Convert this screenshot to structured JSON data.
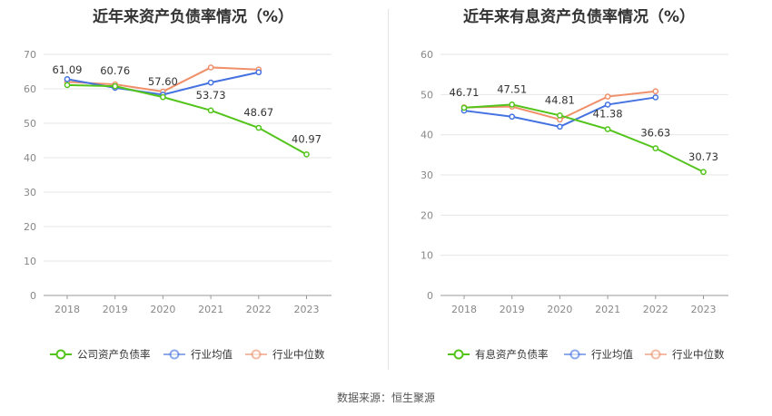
{
  "chart_data": [
    {
      "type": "line",
      "title": "近年来资产负债率情况（%）",
      "categories": [
        "2018",
        "2019",
        "2020",
        "2021",
        "2022",
        "2023"
      ],
      "ylim": [
        0,
        70
      ],
      "yticks": [
        0,
        10,
        20,
        30,
        40,
        50,
        60,
        70
      ],
      "grid": true,
      "legend_position": "bottom",
      "series": [
        {
          "name": "公司资产负债率",
          "color": "#52c41a",
          "values": [
            61.09,
            60.76,
            57.6,
            53.73,
            48.67,
            40.97
          ],
          "labels": [
            "61.09",
            "60.76",
            "57.60",
            "53.73",
            "48.67",
            "40.97"
          ]
        },
        {
          "name": "行业均值",
          "color": "#4472e0",
          "values": [
            62.8,
            60.3,
            58.3,
            61.8,
            64.8,
            null
          ]
        },
        {
          "name": "行业中位数",
          "color": "#f0906a",
          "values": [
            62.0,
            61.3,
            59.2,
            66.2,
            65.6,
            null
          ]
        }
      ]
    },
    {
      "type": "line",
      "title": "近年来有息资产负债率情况（%）",
      "categories": [
        "2018",
        "2019",
        "2020",
        "2021",
        "2022",
        "2023"
      ],
      "ylim": [
        0,
        60
      ],
      "yticks": [
        0,
        10,
        20,
        30,
        40,
        50,
        60
      ],
      "grid": true,
      "legend_position": "bottom",
      "series": [
        {
          "name": "有息资产负债率",
          "color": "#52c41a",
          "values": [
            46.71,
            47.51,
            44.81,
            41.38,
            36.63,
            30.73
          ],
          "labels": [
            "46.71",
            "47.51",
            "44.81",
            "41.38",
            "36.63",
            "30.73"
          ]
        },
        {
          "name": "行业均值",
          "color": "#4472e0",
          "values": [
            46.0,
            44.5,
            42.0,
            47.5,
            49.3,
            null
          ]
        },
        {
          "name": "行业中位数",
          "color": "#f0906a",
          "values": [
            46.8,
            47.0,
            43.8,
            49.5,
            50.8,
            null
          ]
        }
      ]
    }
  ],
  "footer": {
    "source": "数据来源：恒生聚源"
  }
}
